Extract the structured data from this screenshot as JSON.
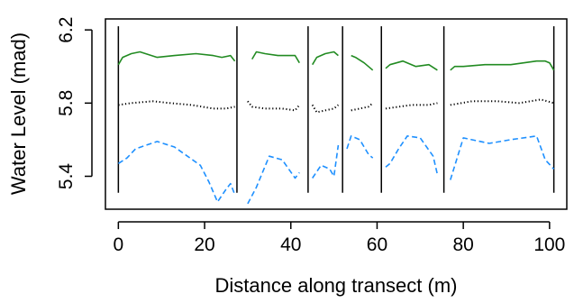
{
  "chart_data": {
    "type": "line",
    "title": "",
    "xlabel": "Distance along transect (m)",
    "ylabel": "Water Level (mad)",
    "xlim": [
      -3,
      104
    ],
    "ylim": [
      5.22,
      6.26
    ],
    "x_ticks": [
      0,
      20,
      40,
      60,
      80,
      100
    ],
    "y_ticks": [
      5.4,
      5.8,
      6.2
    ],
    "x_tick_labels": [
      "0",
      "20",
      "40",
      "60",
      "80",
      "100"
    ],
    "y_tick_labels": [
      "5.4",
      "5.8",
      "6.2"
    ],
    "grid": false,
    "legend": "none",
    "segment_dividers": {
      "x": [
        0,
        27.5,
        44,
        52,
        61,
        75.5,
        101
      ],
      "y_range": [
        5.31,
        6.22
      ]
    },
    "series": [
      {
        "style": "solid",
        "color": "#228B22",
        "segments": [
          [
            [
              0,
              6.01
            ],
            [
              1,
              6.05
            ],
            [
              3,
              6.07
            ],
            [
              5,
              6.08
            ],
            [
              9,
              6.05
            ],
            [
              13,
              6.06
            ],
            [
              18,
              6.07
            ],
            [
              22,
              6.06
            ],
            [
              24,
              6.05
            ],
            [
              26,
              6.06
            ],
            [
              27,
              6.03
            ]
          ],
          [
            [
              31,
              6.04
            ],
            [
              32,
              6.08
            ],
            [
              34,
              6.07
            ],
            [
              37,
              6.06
            ],
            [
              40,
              6.06
            ],
            [
              41,
              6.06
            ],
            [
              42,
              6.02
            ]
          ],
          [
            [
              45,
              6.01
            ],
            [
              46,
              6.05
            ],
            [
              48,
              6.07
            ],
            [
              50,
              6.08
            ],
            [
              51,
              6.06
            ]
          ],
          [
            [
              54,
              6.06
            ],
            [
              55,
              6.05
            ],
            [
              57,
              6.02
            ],
            [
              59,
              5.98
            ]
          ],
          [
            [
              62,
              5.99
            ],
            [
              63,
              6.01
            ],
            [
              66,
              6.03
            ],
            [
              69,
              6.0
            ],
            [
              72,
              6.01
            ],
            [
              74,
              5.98
            ]
          ],
          [
            [
              77,
              5.98
            ],
            [
              78,
              6.0
            ],
            [
              80,
              6.0
            ],
            [
              85,
              6.01
            ],
            [
              91,
              6.01
            ],
            [
              97,
              6.03
            ],
            [
              99,
              6.03
            ],
            [
              100,
              6.02
            ],
            [
              101,
              5.98
            ]
          ]
        ]
      },
      {
        "style": "dotted",
        "color": "#000000",
        "segments": [
          [
            [
              0,
              5.79
            ],
            [
              3,
              5.8
            ],
            [
              8,
              5.81
            ],
            [
              12,
              5.8
            ],
            [
              17,
              5.79
            ],
            [
              22,
              5.77
            ],
            [
              25,
              5.77
            ],
            [
              27,
              5.78
            ]
          ],
          [
            [
              30,
              5.81
            ],
            [
              31,
              5.78
            ],
            [
              34,
              5.77
            ],
            [
              38,
              5.77
            ],
            [
              41,
              5.76
            ],
            [
              42,
              5.79
            ]
          ],
          [
            [
              45,
              5.79
            ],
            [
              46,
              5.75
            ],
            [
              48,
              5.76
            ],
            [
              50,
              5.77
            ],
            [
              51,
              5.79
            ]
          ],
          [
            [
              54,
              5.76
            ],
            [
              56,
              5.77
            ],
            [
              58,
              5.78
            ],
            [
              59,
              5.8
            ]
          ],
          [
            [
              62,
              5.77
            ],
            [
              65,
              5.78
            ],
            [
              68,
              5.79
            ],
            [
              72,
              5.79
            ],
            [
              74,
              5.8
            ]
          ],
          [
            [
              77,
              5.79
            ],
            [
              82,
              5.81
            ],
            [
              88,
              5.81
            ],
            [
              93,
              5.8
            ],
            [
              98,
              5.82
            ],
            [
              101,
              5.8
            ]
          ]
        ]
      },
      {
        "style": "dashed",
        "color": "#1E90FF",
        "segments": [
          [
            [
              0,
              5.47
            ],
            [
              2,
              5.5
            ],
            [
              4,
              5.55
            ],
            [
              9,
              5.59
            ],
            [
              13,
              5.56
            ],
            [
              19,
              5.46
            ],
            [
              21,
              5.37
            ],
            [
              23,
              5.26
            ],
            [
              25,
              5.33
            ],
            [
              26,
              5.36
            ],
            [
              27,
              5.3
            ]
          ],
          [
            [
              30,
              5.25
            ],
            [
              32,
              5.34
            ],
            [
              35,
              5.51
            ],
            [
              38,
              5.49
            ],
            [
              41,
              5.39
            ],
            [
              42,
              5.42
            ]
          ],
          [
            [
              45,
              5.39
            ],
            [
              47,
              5.46
            ],
            [
              49,
              5.44
            ],
            [
              50,
              5.4
            ],
            [
              51,
              5.57
            ]
          ],
          [
            [
              53,
              5.55
            ],
            [
              54,
              5.62
            ],
            [
              56,
              5.6
            ],
            [
              58,
              5.52
            ],
            [
              59,
              5.5
            ]
          ],
          [
            [
              62,
              5.45
            ],
            [
              63,
              5.47
            ],
            [
              65,
              5.55
            ],
            [
              67,
              5.62
            ],
            [
              70,
              5.61
            ],
            [
              73,
              5.51
            ],
            [
              74,
              5.41
            ]
          ],
          [
            [
              77,
              5.38
            ],
            [
              80,
              5.61
            ],
            [
              86,
              5.58
            ],
            [
              91,
              5.6
            ],
            [
              97,
              5.62
            ],
            [
              99,
              5.49
            ],
            [
              101,
              5.44
            ]
          ]
        ]
      }
    ]
  }
}
